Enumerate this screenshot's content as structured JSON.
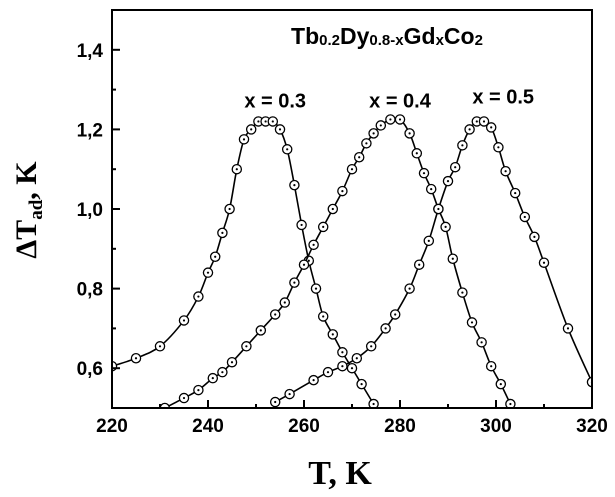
{
  "chart_data": {
    "type": "line",
    "title_parts": [
      {
        "text": "Tb",
        "sub": false
      },
      {
        "text": "0.2",
        "sub": true
      },
      {
        "text": "Dy",
        "sub": false
      },
      {
        "text": "0.8-x",
        "sub": true
      },
      {
        "text": "Gd",
        "sub": false
      },
      {
        "text": "x",
        "sub": true
      },
      {
        "text": "Co",
        "sub": false
      },
      {
        "text": "2",
        "sub": true
      }
    ],
    "xlabel": "T, K",
    "ylabel_parts": [
      {
        "text": "ΔT",
        "sub": false
      },
      {
        "text": "ad",
        "sub": true
      },
      {
        "text": ", K",
        "sub": false
      }
    ],
    "xlim": [
      220,
      320
    ],
    "ylim": [
      0.5,
      1.5
    ],
    "xticks": [
      "220",
      "240",
      "260",
      "280",
      "300",
      "320"
    ],
    "xtick_values": [
      220,
      240,
      260,
      280,
      300,
      320
    ],
    "yticks": [
      "0,6",
      "0,8",
      "1,0",
      "1,2",
      "1,4"
    ],
    "ytick_values": [
      0.6,
      0.8,
      1.0,
      1.2,
      1.4
    ],
    "line_color": "#000000",
    "series": [
      {
        "name": "x = 0.3",
        "label_at": [
          254,
          1.255
        ],
        "x": [
          220,
          225,
          230,
          235,
          238,
          240,
          241.5,
          243,
          244.5,
          246,
          247.5,
          249,
          250.5,
          252,
          253.5,
          255,
          256.5,
          258,
          259.5,
          261,
          262.5,
          264,
          266,
          268,
          270,
          272,
          274.5
        ],
        "y": [
          0.605,
          0.625,
          0.655,
          0.72,
          0.78,
          0.84,
          0.88,
          0.94,
          1.0,
          1.1,
          1.175,
          1.2,
          1.22,
          1.22,
          1.22,
          1.2,
          1.15,
          1.06,
          0.96,
          0.87,
          0.8,
          0.73,
          0.685,
          0.64,
          0.6,
          0.56,
          0.51
        ]
      },
      {
        "name": "x = 0.4",
        "label_at": [
          280,
          1.255
        ],
        "x": [
          231,
          235,
          238,
          241,
          243,
          245,
          248,
          251,
          254,
          256,
          258,
          260,
          262,
          264,
          266,
          268,
          270,
          271.5,
          273,
          274.5,
          276,
          278,
          280,
          282,
          283.5,
          285,
          286.5,
          288,
          289.5,
          291,
          293,
          295,
          297,
          299,
          301,
          303
        ],
        "y": [
          0.5,
          0.525,
          0.545,
          0.575,
          0.59,
          0.615,
          0.655,
          0.695,
          0.735,
          0.765,
          0.815,
          0.86,
          0.91,
          0.955,
          1.0,
          1.045,
          1.1,
          1.13,
          1.165,
          1.19,
          1.21,
          1.225,
          1.225,
          1.19,
          1.14,
          1.09,
          1.05,
          1.0,
          0.955,
          0.875,
          0.79,
          0.715,
          0.665,
          0.605,
          0.56,
          0.51
        ]
      },
      {
        "name": "x = 0.5",
        "label_at": [
          301.5,
          1.265
        ],
        "x": [
          254,
          257,
          262,
          265,
          268,
          271,
          274,
          277,
          279,
          282,
          284,
          286,
          288,
          290,
          291.5,
          293,
          294.5,
          296,
          297.5,
          299,
          300.5,
          302,
          304,
          306,
          308,
          310,
          315,
          320
        ],
        "y": [
          0.515,
          0.535,
          0.57,
          0.59,
          0.605,
          0.625,
          0.655,
          0.7,
          0.735,
          0.8,
          0.86,
          0.92,
          1.0,
          1.07,
          1.105,
          1.16,
          1.2,
          1.22,
          1.22,
          1.205,
          1.155,
          1.095,
          1.04,
          0.98,
          0.93,
          0.865,
          0.7,
          0.565
        ]
      }
    ]
  }
}
